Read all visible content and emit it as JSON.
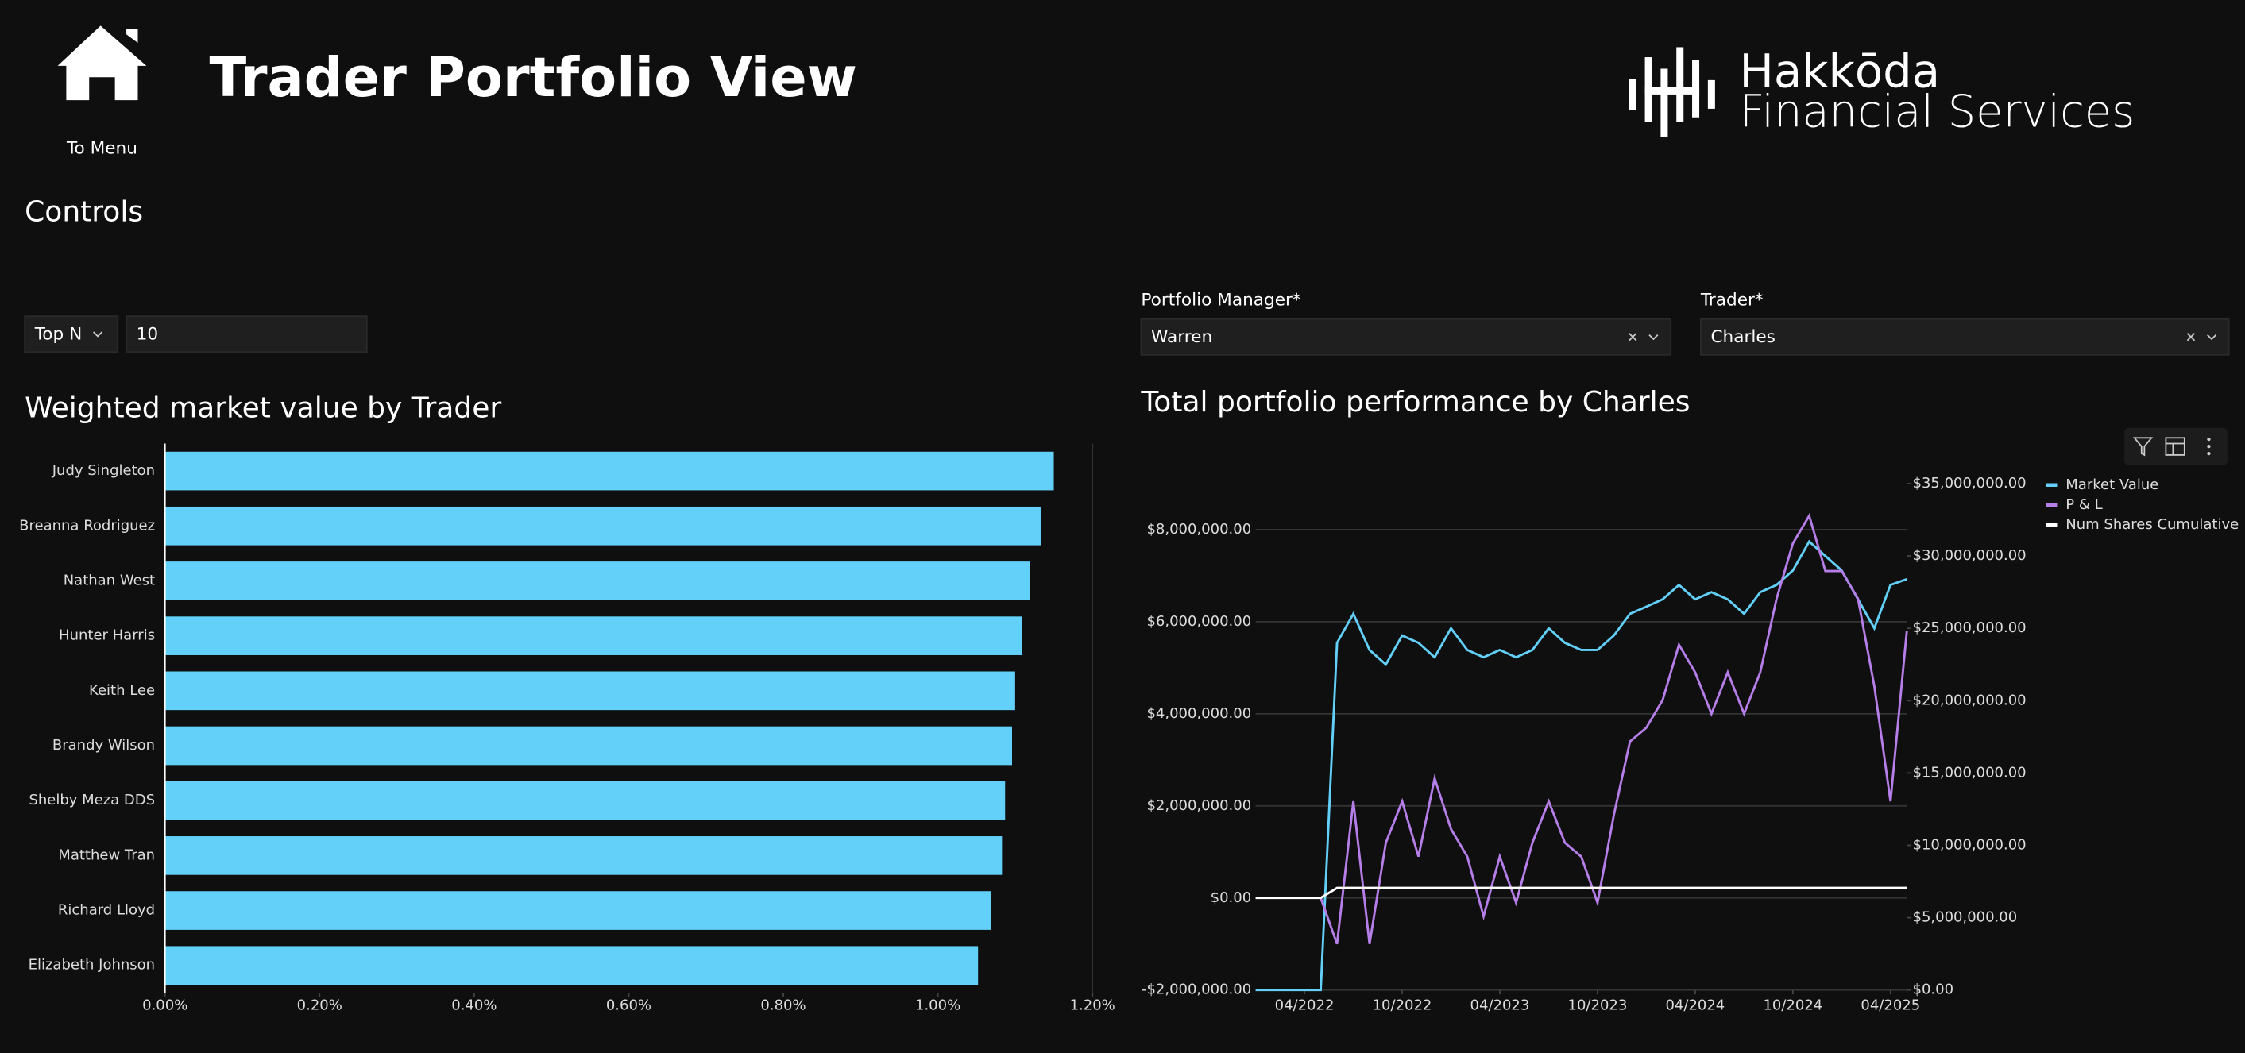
{
  "header": {
    "menu_label": "To Menu",
    "title": "Trader Portfolio View",
    "logo_line1": "Hakkōda",
    "logo_line2": "Financial Services"
  },
  "controls": {
    "heading": "Controls",
    "topn_select": "Top N",
    "topn_value": "10",
    "pm_label": "Portfolio Manager*",
    "pm_value": "Warren",
    "trader_label": "Trader*",
    "trader_value": "Charles"
  },
  "chart_data": [
    {
      "type": "hbar",
      "title": "Weighted market value by Trader",
      "categories": [
        "Judy Singleton",
        "Breanna Rodriguez",
        "Nathan West",
        "Hunter Harris",
        "Keith Lee",
        "Brandy Wilson",
        "Shelby Meza DDS",
        "Matthew Tran",
        "Richard Lloyd",
        "Elizabeth Johnson"
      ],
      "values": [
        1.15,
        1.133,
        1.119,
        1.109,
        1.1,
        1.096,
        1.087,
        1.083,
        1.069,
        1.052
      ],
      "color": "#63d0fa",
      "xlim": [
        0,
        1.2
      ],
      "xticks": [
        {
          "value": 0,
          "label": "0.00%"
        },
        {
          "value": 0.2,
          "label": "0.20%"
        },
        {
          "value": 0.4,
          "label": "0.40%"
        },
        {
          "value": 0.6,
          "label": "0.60%"
        },
        {
          "value": 0.8,
          "label": "0.80%"
        },
        {
          "value": 1.0,
          "label": "1.00%"
        },
        {
          "value": 1.2,
          "label": "1.20%"
        }
      ]
    },
    {
      "type": "line",
      "title": "Total portfolio performance by Charles",
      "x": [
        "2022-01",
        "2022-02",
        "2022-03",
        "2022-04",
        "2022-05",
        "2022-06",
        "2022-07",
        "2022-08",
        "2022-09",
        "2022-10",
        "2022-11",
        "2022-12",
        "2023-01",
        "2023-02",
        "2023-03",
        "2023-04",
        "2023-05",
        "2023-06",
        "2023-07",
        "2023-08",
        "2023-09",
        "2023-10",
        "2023-11",
        "2023-12",
        "2024-01",
        "2024-02",
        "2024-03",
        "2024-04",
        "2024-05",
        "2024-06",
        "2024-07",
        "2024-08",
        "2024-09",
        "2024-10",
        "2024-11",
        "2024-12",
        "2025-01",
        "2025-02",
        "2025-03",
        "2025-04",
        "2025-05"
      ],
      "xlim": [
        "2022-01",
        "2025-05"
      ],
      "xticks": [
        {
          "value": "2022-04",
          "label": "04/2022"
        },
        {
          "value": "2022-10",
          "label": "10/2022"
        },
        {
          "value": "2023-04",
          "label": "04/2023"
        },
        {
          "value": "2023-10",
          "label": "10/2023"
        },
        {
          "value": "2024-04",
          "label": "04/2024"
        },
        {
          "value": "2024-10",
          "label": "10/2024"
        },
        {
          "value": "2025-04",
          "label": "04/2025"
        }
      ],
      "ylim": [
        -2000000,
        9000000
      ],
      "yticks": [
        {
          "value": -2000000,
          "label": "-$2,000,000.00"
        },
        {
          "value": 0,
          "label": "$0.00"
        },
        {
          "value": 2000000,
          "label": "$2,000,000.00"
        },
        {
          "value": 4000000,
          "label": "$4,000,000.00"
        },
        {
          "value": 6000000,
          "label": "$6,000,000.00"
        },
        {
          "value": 8000000,
          "label": "$8,000,000.00"
        }
      ],
      "y2lim": [
        0,
        35000000
      ],
      "y2ticks": [
        {
          "value": 0,
          "label": "$0.00"
        },
        {
          "value": 5000000,
          "label": "$5,000,000.00"
        },
        {
          "value": 10000000,
          "label": "$10,000,000.00"
        },
        {
          "value": 15000000,
          "label": "$15,000,000.00"
        },
        {
          "value": 20000000,
          "label": "$20,000,000.00"
        },
        {
          "value": 25000000,
          "label": "$25,000,000.00"
        },
        {
          "value": 30000000,
          "label": "$30,000,000.00"
        },
        {
          "value": 35000000,
          "label": "$35,000,000.00"
        }
      ],
      "grid": true,
      "legend": "upper right",
      "series": [
        {
          "name": "Market Value",
          "color": "#63d0fa",
          "axis": "y2",
          "values": [
            0,
            0,
            0,
            0,
            0,
            24000000,
            26000000,
            23500000,
            22500000,
            24500000,
            24000000,
            23000000,
            25000000,
            23500000,
            23000000,
            23500000,
            23000000,
            23500000,
            25000000,
            24000000,
            23500000,
            23500000,
            24500000,
            26000000,
            26500000,
            27000000,
            28000000,
            27000000,
            27500000,
            27000000,
            26000000,
            27500000,
            28000000,
            29000000,
            31000000,
            30000000,
            29000000,
            27000000,
            25000000,
            28000000,
            28400000
          ]
        },
        {
          "name": "P & L",
          "color": "#b57ee8",
          "values": [
            null,
            null,
            null,
            null,
            0,
            -1000000,
            2100000,
            -1000000,
            1200000,
            2100000,
            900000,
            2600000,
            1500000,
            900000,
            -400000,
            900000,
            -100000,
            1200000,
            2100000,
            1200000,
            900000,
            -100000,
            1800000,
            3400000,
            3700000,
            4300000,
            5500000,
            4900000,
            4000000,
            4900000,
            4000000,
            4900000,
            6500000,
            7700000,
            8300000,
            7100000,
            7100000,
            6500000,
            4600000,
            2100000,
            5800000
          ]
        },
        {
          "name": "Num Shares Cumulative",
          "color": "#ffffff",
          "values": [
            0,
            0,
            0,
            0,
            0,
            220000,
            220000,
            220000,
            220000,
            220000,
            220000,
            220000,
            220000,
            220000,
            220000,
            220000,
            220000,
            220000,
            220000,
            220000,
            220000,
            220000,
            220000,
            220000,
            220000,
            220000,
            220000,
            220000,
            220000,
            220000,
            220000,
            220000,
            220000,
            220000,
            220000,
            220000,
            220000,
            220000,
            220000,
            220000,
            220000
          ]
        }
      ]
    }
  ]
}
